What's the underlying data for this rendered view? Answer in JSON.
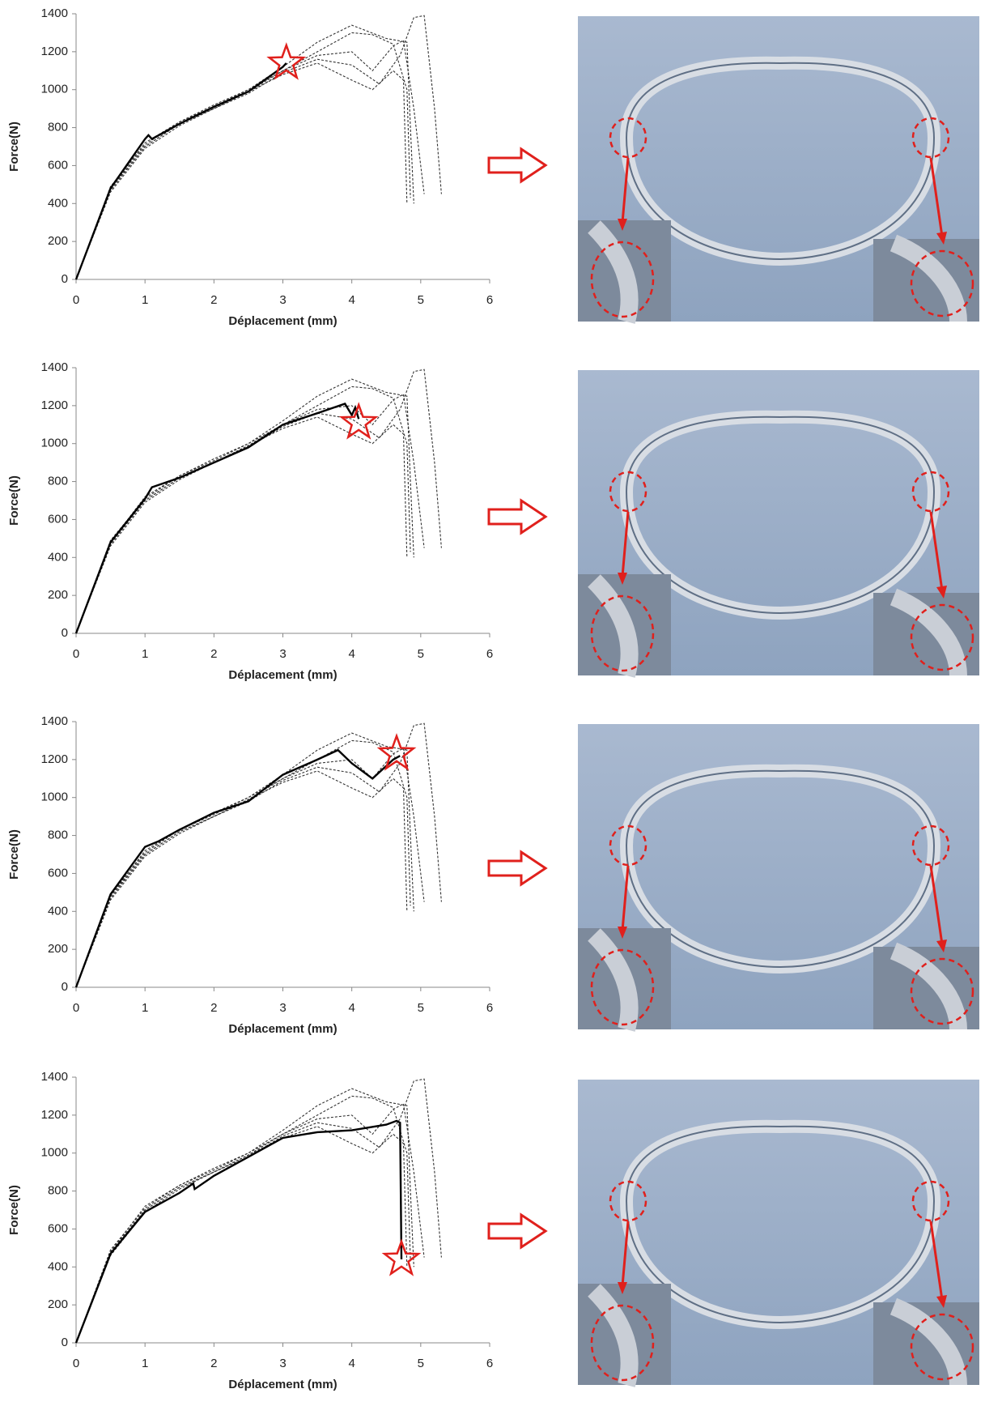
{
  "chart_data": [
    {
      "type": "line",
      "xlabel": "Déplacement (mm)",
      "ylabel": "Force(N)",
      "xlim": [
        0,
        6
      ],
      "xticks": [
        0,
        1,
        2,
        3,
        4,
        5,
        6
      ],
      "ylim": [
        0,
        1400
      ],
      "yticks": [
        0,
        200,
        400,
        600,
        800,
        1000,
        1200,
        1400
      ],
      "series": [
        {
          "color": "#333333",
          "dash": true,
          "x": [
            0,
            0.5,
            1,
            1.5,
            2,
            2.5,
            3,
            3.5,
            4,
            4.5,
            4.8,
            4.85,
            4.9
          ],
          "values": [
            0,
            480,
            720,
            830,
            920,
            1000,
            1120,
            1250,
            1340,
            1270,
            1250,
            800,
            400
          ]
        },
        {
          "color": "#333333",
          "dash": true,
          "x": [
            0,
            0.5,
            1,
            1.5,
            2,
            2.5,
            3,
            3.5,
            4,
            4.3,
            4.6,
            4.75,
            4.9,
            5.0,
            5.05
          ],
          "values": [
            0,
            470,
            700,
            820,
            900,
            990,
            1100,
            1180,
            1200,
            1100,
            1230,
            1260,
            900,
            600,
            450
          ]
        },
        {
          "color": "#333333",
          "dash": true,
          "x": [
            0,
            0.5,
            1,
            1.5,
            2,
            2.5,
            3,
            3.5,
            4,
            4.4,
            4.7,
            4.9,
            5.05,
            5.2,
            5.3
          ],
          "values": [
            0,
            460,
            690,
            810,
            900,
            980,
            1090,
            1160,
            1130,
            1030,
            1180,
            1380,
            1390,
            900,
            450
          ]
        },
        {
          "color": "#333333",
          "dash": true,
          "x": [
            0,
            0.5,
            1,
            1.5,
            2,
            2.5,
            3,
            3.5,
            4,
            4.3,
            4.6,
            4.8,
            4.85
          ],
          "values": [
            0,
            490,
            710,
            830,
            910,
            1000,
            1100,
            1200,
            1300,
            1290,
            1240,
            1000,
            430
          ]
        },
        {
          "color": "#333333",
          "dash": true,
          "x": [
            0,
            0.5,
            1,
            1.5,
            2,
            2.5,
            3,
            3.5,
            4,
            4.3,
            4.6,
            4.75,
            4.8
          ],
          "values": [
            0,
            480,
            700,
            820,
            900,
            990,
            1080,
            1140,
            1050,
            1000,
            1100,
            1050,
            400
          ]
        },
        {
          "color": "#000000",
          "dash": false,
          "x": [
            0,
            0.5,
            1,
            1.05,
            1.1,
            1.2,
            1.5,
            2,
            2.5,
            3,
            3.05
          ],
          "values": [
            0,
            480,
            740,
            760,
            740,
            760,
            820,
            910,
            990,
            1120,
            1140
          ]
        }
      ],
      "highlight": {
        "x": 3.05,
        "y": 1140,
        "color": "#e0201c"
      }
    },
    {
      "type": "line",
      "xlabel": "Déplacement (mm)",
      "ylabel": "Force(N)",
      "xlim": [
        0,
        6
      ],
      "xticks": [
        0,
        1,
        2,
        3,
        4,
        5,
        6
      ],
      "ylim": [
        0,
        1400
      ],
      "yticks": [
        0,
        200,
        400,
        600,
        800,
        1000,
        1200,
        1400
      ],
      "series": [
        {
          "color": "#333333",
          "dash": true,
          "x": [
            0,
            0.5,
            1,
            1.5,
            2,
            2.5,
            3,
            3.5,
            4,
            4.5,
            4.8,
            4.85,
            4.9
          ],
          "values": [
            0,
            480,
            720,
            830,
            920,
            1000,
            1120,
            1250,
            1340,
            1270,
            1250,
            800,
            400
          ]
        },
        {
          "color": "#333333",
          "dash": true,
          "x": [
            0,
            0.5,
            1,
            1.5,
            2,
            2.5,
            3,
            3.5,
            4,
            4.3,
            4.6,
            4.75,
            4.9,
            5.0,
            5.05
          ],
          "values": [
            0,
            470,
            700,
            820,
            900,
            990,
            1100,
            1180,
            1200,
            1100,
            1230,
            1260,
            900,
            600,
            450
          ]
        },
        {
          "color": "#333333",
          "dash": true,
          "x": [
            0,
            0.5,
            1,
            1.5,
            2,
            2.5,
            3,
            3.5,
            4,
            4.4,
            4.7,
            4.9,
            5.05,
            5.2,
            5.3
          ],
          "values": [
            0,
            460,
            690,
            810,
            900,
            980,
            1090,
            1160,
            1130,
            1030,
            1180,
            1380,
            1390,
            900,
            450
          ]
        },
        {
          "color": "#333333",
          "dash": true,
          "x": [
            0,
            0.5,
            1,
            1.5,
            2,
            2.5,
            3,
            3.5,
            4,
            4.3,
            4.6,
            4.8,
            4.85
          ],
          "values": [
            0,
            490,
            710,
            830,
            910,
            1000,
            1100,
            1200,
            1300,
            1290,
            1240,
            1000,
            430
          ]
        },
        {
          "color": "#333333",
          "dash": true,
          "x": [
            0,
            0.5,
            1,
            1.5,
            2,
            2.5,
            3,
            3.5,
            4,
            4.3,
            4.6,
            4.75,
            4.8
          ],
          "values": [
            0,
            480,
            700,
            820,
            900,
            990,
            1080,
            1140,
            1050,
            1000,
            1100,
            1050,
            400
          ]
        },
        {
          "color": "#000000",
          "dash": false,
          "x": [
            0,
            0.5,
            1,
            1.1,
            1.5,
            2,
            2.5,
            3,
            3.5,
            3.9,
            4.0,
            4.05,
            4.1
          ],
          "values": [
            0,
            480,
            710,
            770,
            820,
            900,
            980,
            1100,
            1160,
            1210,
            1150,
            1190,
            1130
          ]
        }
      ],
      "highlight": {
        "x": 4.1,
        "y": 1110,
        "color": "#e0201c"
      }
    },
    {
      "type": "line",
      "xlabel": "Déplacement (mm)",
      "ylabel": "Force(N)",
      "xlim": [
        0,
        6
      ],
      "xticks": [
        0,
        1,
        2,
        3,
        4,
        5,
        6
      ],
      "ylim": [
        0,
        1400
      ],
      "yticks": [
        0,
        200,
        400,
        600,
        800,
        1000,
        1200,
        1400
      ],
      "series": [
        {
          "color": "#333333",
          "dash": true,
          "x": [
            0,
            0.5,
            1,
            1.5,
            2,
            2.5,
            3,
            3.5,
            4,
            4.5,
            4.8,
            4.85,
            4.9
          ],
          "values": [
            0,
            480,
            720,
            830,
            920,
            1000,
            1120,
            1250,
            1340,
            1270,
            1250,
            800,
            400
          ]
        },
        {
          "color": "#333333",
          "dash": true,
          "x": [
            0,
            0.5,
            1,
            1.5,
            2,
            2.5,
            3,
            3.5,
            4,
            4.3,
            4.6,
            4.75,
            4.9,
            5.0,
            5.05
          ],
          "values": [
            0,
            470,
            700,
            820,
            900,
            990,
            1100,
            1180,
            1200,
            1100,
            1230,
            1260,
            900,
            600,
            450
          ]
        },
        {
          "color": "#333333",
          "dash": true,
          "x": [
            0,
            0.5,
            1,
            1.5,
            2,
            2.5,
            3,
            3.5,
            4,
            4.4,
            4.7,
            4.9,
            5.05,
            5.2,
            5.3
          ],
          "values": [
            0,
            460,
            690,
            810,
            900,
            980,
            1090,
            1160,
            1130,
            1030,
            1180,
            1380,
            1390,
            900,
            450
          ]
        },
        {
          "color": "#333333",
          "dash": true,
          "x": [
            0,
            0.5,
            1,
            1.5,
            2,
            2.5,
            3,
            3.5,
            4,
            4.3,
            4.6,
            4.8,
            4.85
          ],
          "values": [
            0,
            490,
            710,
            830,
            910,
            1000,
            1100,
            1200,
            1300,
            1290,
            1240,
            1000,
            430
          ]
        },
        {
          "color": "#333333",
          "dash": true,
          "x": [
            0,
            0.5,
            1,
            1.5,
            2,
            2.5,
            3,
            3.5,
            4,
            4.3,
            4.6,
            4.75,
            4.8
          ],
          "values": [
            0,
            480,
            700,
            820,
            900,
            990,
            1080,
            1140,
            1050,
            1000,
            1100,
            1050,
            400
          ]
        },
        {
          "color": "#000000",
          "dash": false,
          "x": [
            0,
            0.5,
            1,
            1.2,
            1.5,
            2,
            2.5,
            3,
            3.5,
            3.8,
            4.0,
            4.3,
            4.6,
            4.7
          ],
          "values": [
            0,
            490,
            740,
            770,
            830,
            920,
            980,
            1120,
            1200,
            1250,
            1180,
            1100,
            1200,
            1220
          ]
        }
      ],
      "highlight": {
        "x": 4.65,
        "y": 1230,
        "color": "#e0201c"
      }
    },
    {
      "type": "line",
      "xlabel": "Déplacement (mm)",
      "ylabel": "Force(N)",
      "xlim": [
        0,
        6
      ],
      "xticks": [
        0,
        1,
        2,
        3,
        4,
        5,
        6
      ],
      "ylim": [
        0,
        1400
      ],
      "yticks": [
        0,
        200,
        400,
        600,
        800,
        1000,
        1200,
        1400
      ],
      "series": [
        {
          "color": "#333333",
          "dash": true,
          "x": [
            0,
            0.5,
            1,
            1.5,
            2,
            2.5,
            3,
            3.5,
            4,
            4.5,
            4.8,
            4.85,
            4.9
          ],
          "values": [
            0,
            480,
            720,
            830,
            920,
            1000,
            1120,
            1250,
            1340,
            1270,
            1250,
            800,
            400
          ]
        },
        {
          "color": "#333333",
          "dash": true,
          "x": [
            0,
            0.5,
            1,
            1.5,
            2,
            2.5,
            3,
            3.5,
            4,
            4.3,
            4.6,
            4.75,
            4.9,
            5.0,
            5.05
          ],
          "values": [
            0,
            470,
            700,
            820,
            900,
            990,
            1100,
            1180,
            1200,
            1100,
            1230,
            1260,
            900,
            600,
            450
          ]
        },
        {
          "color": "#333333",
          "dash": true,
          "x": [
            0,
            0.5,
            1,
            1.5,
            2,
            2.5,
            3,
            3.5,
            4,
            4.4,
            4.7,
            4.9,
            5.05,
            5.2,
            5.3
          ],
          "values": [
            0,
            460,
            690,
            810,
            900,
            980,
            1090,
            1160,
            1130,
            1030,
            1180,
            1380,
            1390,
            900,
            450
          ]
        },
        {
          "color": "#333333",
          "dash": true,
          "x": [
            0,
            0.5,
            1,
            1.5,
            2,
            2.5,
            3,
            3.5,
            4,
            4.3,
            4.6,
            4.8,
            4.85
          ],
          "values": [
            0,
            490,
            710,
            830,
            910,
            1000,
            1100,
            1200,
            1300,
            1290,
            1240,
            1000,
            430
          ]
        },
        {
          "color": "#333333",
          "dash": true,
          "x": [
            0,
            0.5,
            1,
            1.5,
            2,
            2.5,
            3,
            3.5,
            4,
            4.3,
            4.6,
            4.75,
            4.8
          ],
          "values": [
            0,
            480,
            700,
            820,
            900,
            990,
            1080,
            1140,
            1050,
            1000,
            1100,
            1050,
            400
          ]
        },
        {
          "color": "#000000",
          "dash": false,
          "x": [
            0,
            0.5,
            1,
            1.5,
            1.7,
            1.72,
            2,
            2.5,
            3,
            3.5,
            4,
            4.5,
            4.65,
            4.7,
            4.72
          ],
          "values": [
            0,
            470,
            690,
            790,
            840,
            810,
            880,
            980,
            1080,
            1110,
            1120,
            1150,
            1170,
            1160,
            440
          ]
        }
      ],
      "highlight": {
        "x": 4.72,
        "y": 440,
        "color": "#e0201c"
      }
    }
  ]
}
